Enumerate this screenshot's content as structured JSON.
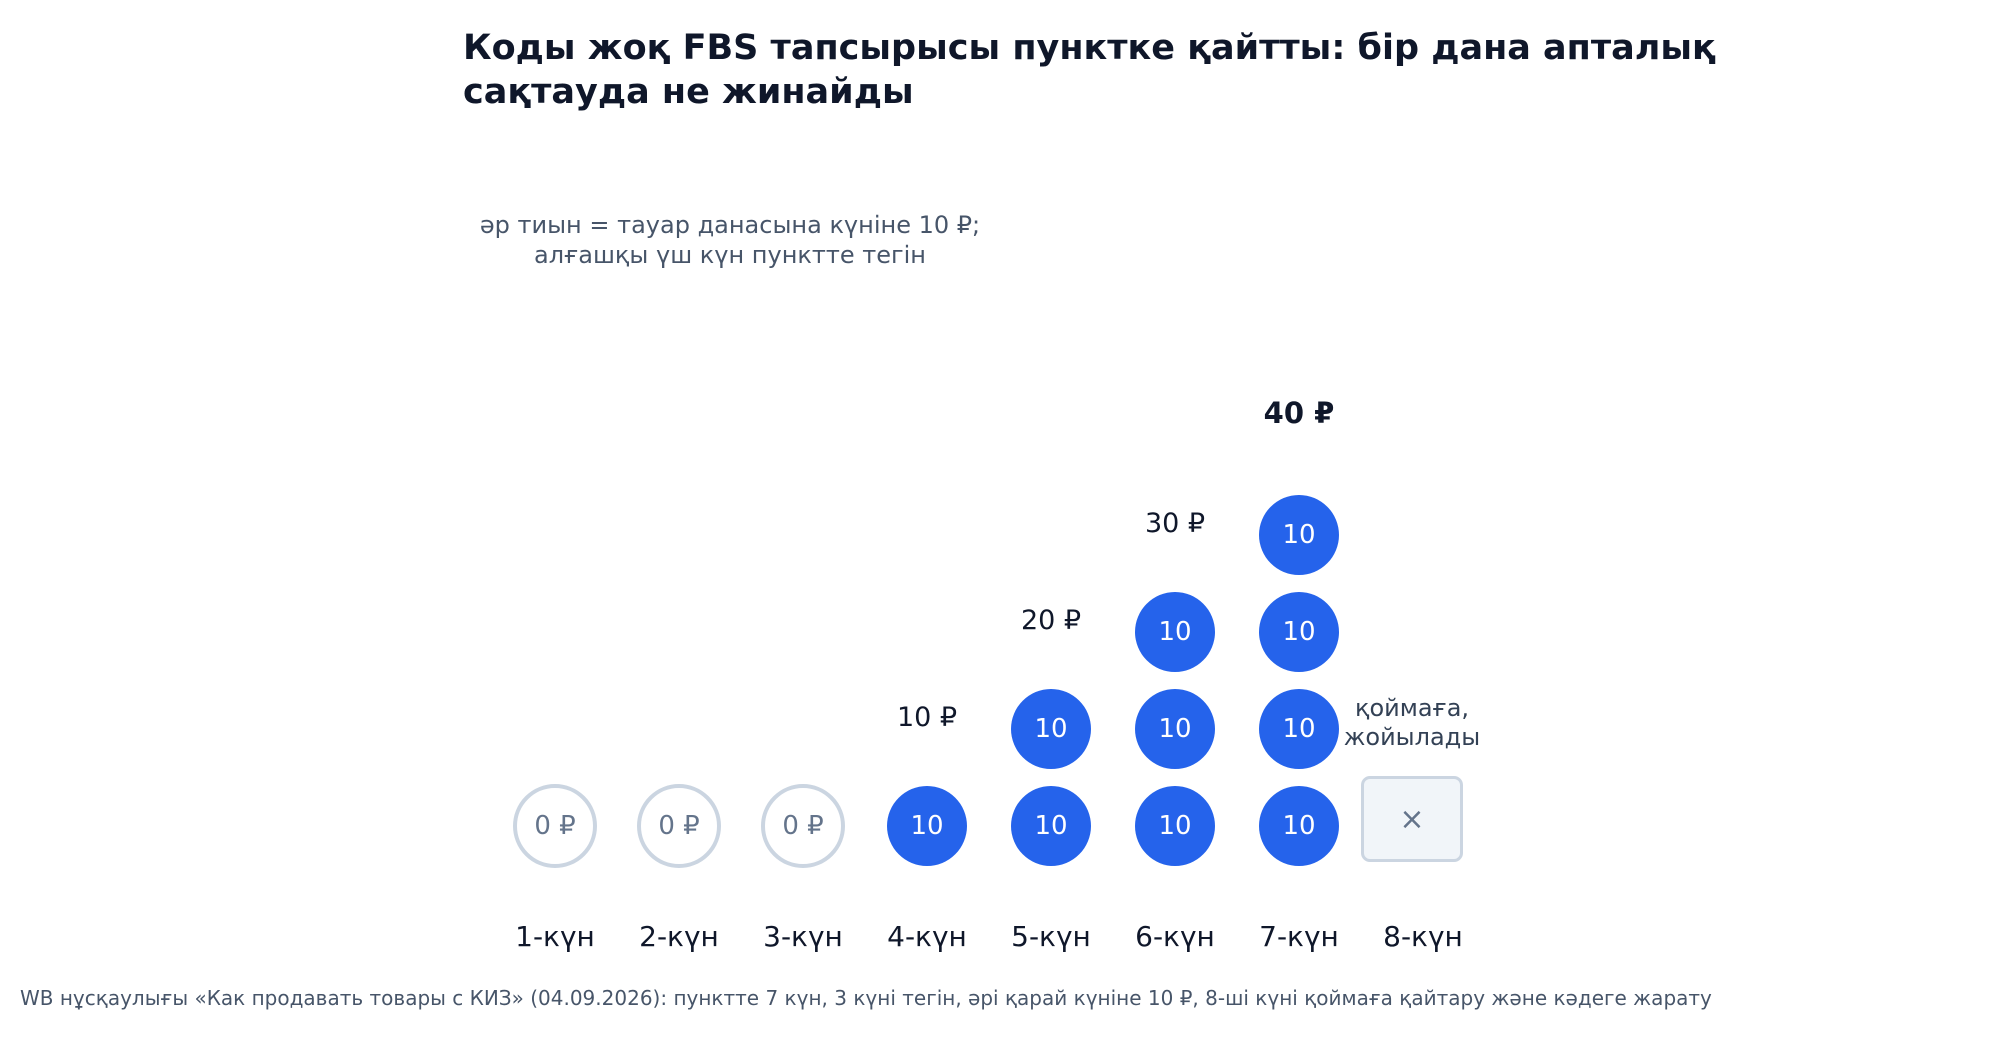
{
  "title": "Коды жоқ FBS тапсырысы пунктке қайтты: бір дана апталық сақтауда не жинайды",
  "subtitle": {
    "line1": "әр тиын = тауар данасына күніне 10 ₽;",
    "line2": "алғашқы үш күн пунктте тегін"
  },
  "days": [
    {
      "label": "1-күн",
      "coins": 0,
      "coin_text": "0 ₽",
      "accumulated": ""
    },
    {
      "label": "2-күн",
      "coins": 0,
      "coin_text": "0 ₽",
      "accumulated": ""
    },
    {
      "label": "3-күн",
      "coins": 0,
      "coin_text": "0 ₽",
      "accumulated": ""
    },
    {
      "label": "4-күн",
      "coins": 1,
      "coin_text": "10",
      "accumulated": "10 ₽"
    },
    {
      "label": "5-күн",
      "coins": 2,
      "coin_text": "10",
      "accumulated": "20 ₽"
    },
    {
      "label": "6-күн",
      "coins": 3,
      "coin_text": "10",
      "accumulated": "30 ₽"
    },
    {
      "label": "7-күн",
      "coins": 4,
      "coin_text": "10",
      "accumulated": "40 ₽"
    },
    {
      "label": "8-күн",
      "coins": 0,
      "coin_text": "",
      "accumulated": ""
    }
  ],
  "removal": {
    "symbol": "×",
    "note_line1": "қоймаға,",
    "note_line2": "жойылады"
  },
  "footnote": "WB нұсқаулығы «Как продавать товары с КИЗ» (04.09.2026): пунктте 7 күн, 3 күні тегін, әрі қарай күніне 10 ₽, 8-ші күні қоймаға қайтару және кәдеге жарату",
  "colors": {
    "paid_coin": "#2563eb",
    "free_coin_border": "#cbd5e1",
    "title": "#0f172a",
    "muted_text": "#475569"
  }
}
